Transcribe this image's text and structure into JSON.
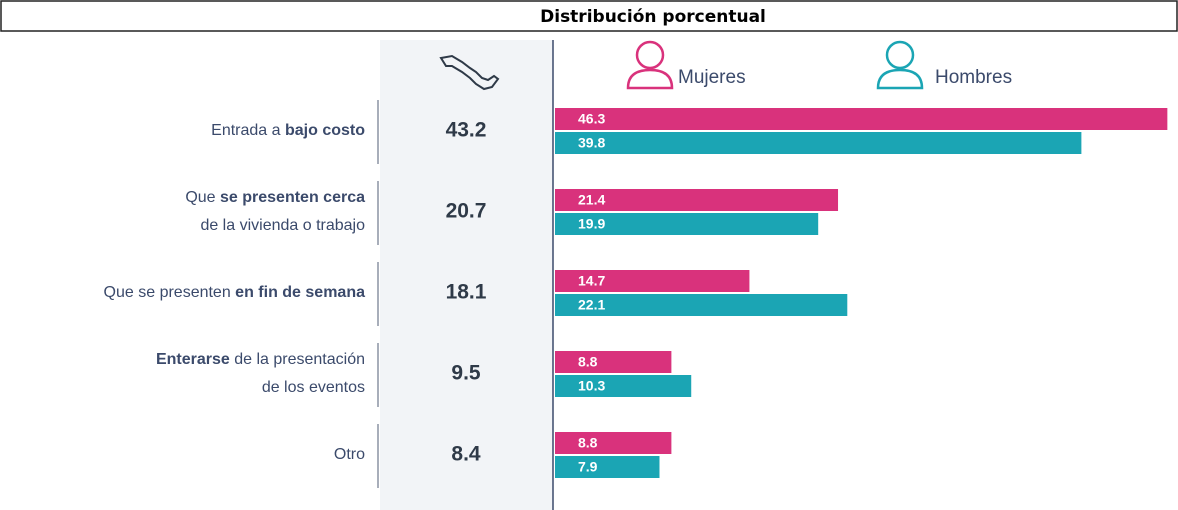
{
  "chart_data": {
    "type": "bar",
    "orientation": "horizontal",
    "title": "Distribución porcentual",
    "categories": [
      [
        [
          {
            "text": "Entrada a "
          },
          {
            "text": "bajo costo",
            "bold": true
          }
        ]
      ],
      [
        [
          {
            "text": "Que "
          },
          {
            "text": "se presenten cerca",
            "bold": true
          }
        ],
        [
          {
            "text": "de la vivienda o trabajo"
          }
        ]
      ],
      [
        [
          {
            "text": "Que se presenten "
          },
          {
            "text": "en fin de semana",
            "bold": true
          }
        ]
      ],
      [
        [
          {
            "text": "Enterarse",
            "bold": true
          },
          {
            "text": " de la presentación"
          }
        ],
        [
          {
            "text": "de los eventos"
          }
        ]
      ],
      [
        [
          {
            "text": "Otro"
          }
        ]
      ]
    ],
    "total_values": [
      43.2,
      20.7,
      18.1,
      9.5,
      8.4
    ],
    "series": [
      {
        "name": "Mujeres",
        "color": "#d9327c",
        "values": [
          46.3,
          21.4,
          14.7,
          8.8,
          8.8
        ]
      },
      {
        "name": "Hombres",
        "color": "#1ba5b4",
        "values": [
          39.8,
          19.9,
          22.1,
          10.3,
          7.9
        ]
      }
    ],
    "xlim": [
      0,
      46.5
    ]
  }
}
